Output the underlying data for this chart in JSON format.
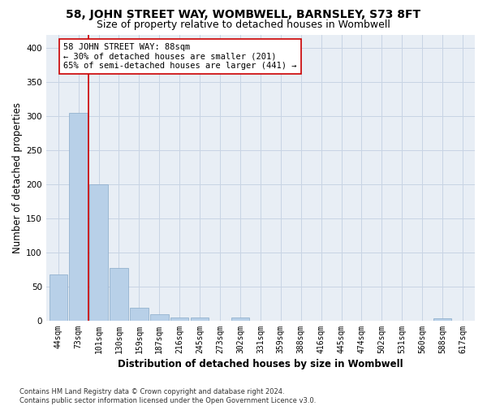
{
  "title": "58, JOHN STREET WAY, WOMBWELL, BARNSLEY, S73 8FT",
  "subtitle": "Size of property relative to detached houses in Wombwell",
  "xlabel": "Distribution of detached houses by size in Wombwell",
  "ylabel": "Number of detached properties",
  "bar_color": "#b8d0e8",
  "bar_edge_color": "#88aac8",
  "categories": [
    "44sqm",
    "73sqm",
    "101sqm",
    "130sqm",
    "159sqm",
    "187sqm",
    "216sqm",
    "245sqm",
    "273sqm",
    "302sqm",
    "331sqm",
    "359sqm",
    "388sqm",
    "416sqm",
    "445sqm",
    "474sqm",
    "502sqm",
    "531sqm",
    "560sqm",
    "588sqm",
    "617sqm"
  ],
  "values": [
    68,
    305,
    200,
    77,
    19,
    9,
    5,
    5,
    0,
    5,
    0,
    0,
    0,
    0,
    0,
    0,
    0,
    0,
    0,
    3,
    0
  ],
  "ylim": [
    0,
    420
  ],
  "yticks": [
    0,
    50,
    100,
    150,
    200,
    250,
    300,
    350,
    400
  ],
  "vline_x": 1.5,
  "vline_color": "#cc0000",
  "annotation_text": "58 JOHN STREET WAY: 88sqm\n← 30% of detached houses are smaller (201)\n65% of semi-detached houses are larger (441) →",
  "footer_text": "Contains HM Land Registry data © Crown copyright and database right 2024.\nContains public sector information licensed under the Open Government Licence v3.0.",
  "bg_color": "#ffffff",
  "plot_bg_color": "#e8eef5",
  "grid_color": "#c8d4e4",
  "title_fontsize": 10,
  "subtitle_fontsize": 9,
  "axis_label_fontsize": 8.5,
  "tick_fontsize": 7,
  "annotation_fontsize": 7.5,
  "footer_fontsize": 6
}
